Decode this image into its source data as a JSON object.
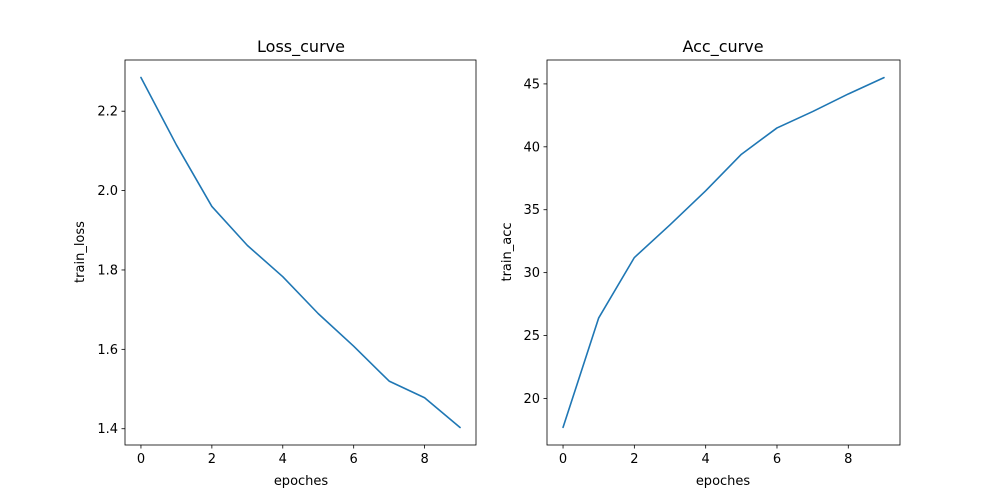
{
  "chart_data": [
    {
      "type": "line",
      "title": "Loss_curve",
      "xlabel": "epoches",
      "ylabel": "train_loss",
      "x": [
        0,
        1,
        2,
        3,
        4,
        5,
        6,
        7,
        8,
        9
      ],
      "series": [
        {
          "values": [
            2.285,
            2.115,
            1.96,
            1.862,
            1.783,
            1.69,
            1.608,
            1.52,
            1.478,
            1.403
          ],
          "color": "#1f77b4"
        }
      ],
      "xlim": [
        -0.45,
        9.45
      ],
      "ylim": [
        1.359,
        2.329
      ],
      "xticks": [
        0,
        2,
        4,
        6,
        8
      ],
      "xtick_labels": [
        "0",
        "2",
        "4",
        "6",
        "8"
      ],
      "yticks": [
        1.4,
        1.6,
        1.8,
        2.0,
        2.2
      ],
      "ytick_labels": [
        "1.4",
        "1.6",
        "1.8",
        "2.0",
        "2.2"
      ],
      "grid": false,
      "legend": "none"
    },
    {
      "type": "line",
      "title": "Acc_curve",
      "xlabel": "epoches",
      "ylabel": "train_acc",
      "x": [
        0,
        1,
        2,
        3,
        4,
        5,
        6,
        7,
        8,
        9
      ],
      "series": [
        {
          "values": [
            17.7,
            26.4,
            31.2,
            33.8,
            36.5,
            39.4,
            41.5,
            42.8,
            44.2,
            45.5
          ],
          "color": "#1f77b4"
        }
      ],
      "xlim": [
        -0.45,
        9.45
      ],
      "ylim": [
        16.3,
        46.9
      ],
      "xticks": [
        0,
        2,
        4,
        6,
        8
      ],
      "xtick_labels": [
        "0",
        "2",
        "4",
        "6",
        "8"
      ],
      "yticks": [
        20,
        25,
        30,
        35,
        40,
        45
      ],
      "ytick_labels": [
        "20",
        "25",
        "30",
        "35",
        "40",
        "45"
      ],
      "grid": false,
      "legend": "none"
    }
  ]
}
